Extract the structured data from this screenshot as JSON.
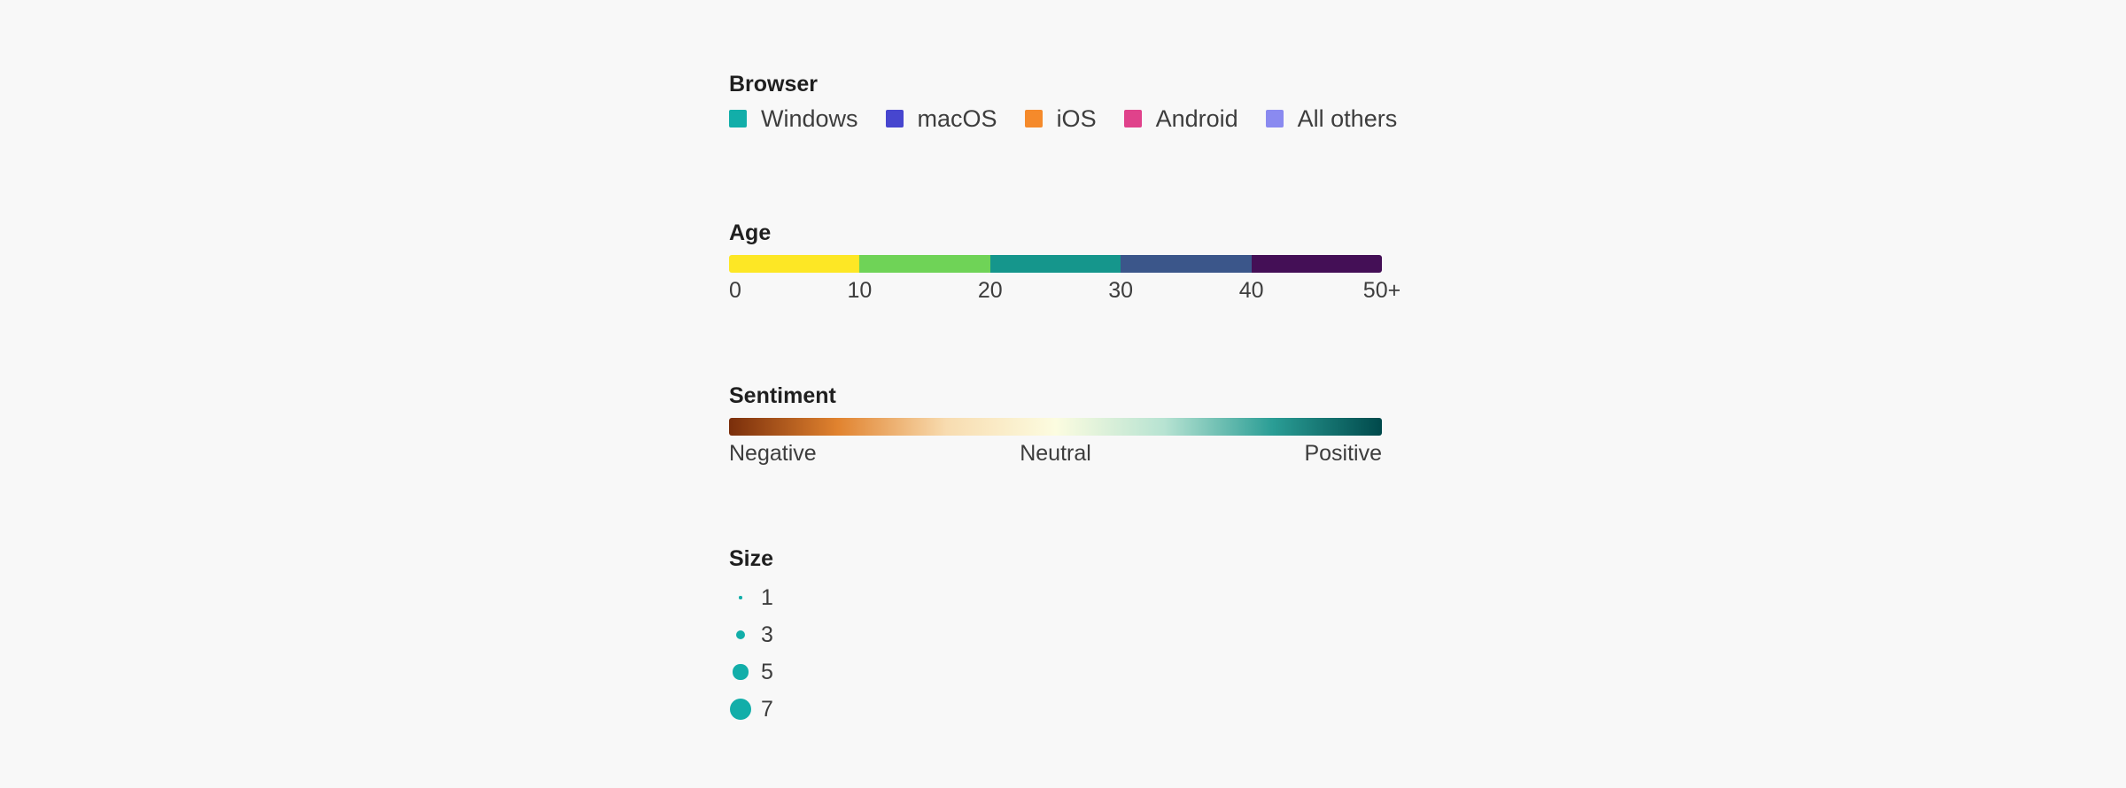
{
  "chart_data": [
    {
      "type": "legend-categorical",
      "title": "Browser",
      "items": [
        {
          "label": "Windows",
          "color": "#12aea9"
        },
        {
          "label": "macOS",
          "color": "#4746cf"
        },
        {
          "label": "iOS",
          "color": "#f58a2b"
        },
        {
          "label": "Android",
          "color": "#e0428b"
        },
        {
          "label": "All others",
          "color": "#8a8af0"
        }
      ]
    },
    {
      "type": "legend-segmented",
      "title": "Age",
      "ticks": [
        "0",
        "10",
        "20",
        "30",
        "40",
        "50+"
      ],
      "segments": [
        {
          "from": 0,
          "to": 10,
          "color": "#fde725"
        },
        {
          "from": 10,
          "to": 20,
          "color": "#6fd357"
        },
        {
          "from": 20,
          "to": 30,
          "color": "#15968c"
        },
        {
          "from": 30,
          "to": 40,
          "color": "#3b568a"
        },
        {
          "from": 40,
          "to": 50,
          "color": "#440f56"
        }
      ],
      "range": [
        0,
        50
      ]
    },
    {
      "type": "legend-gradient",
      "title": "Sentiment",
      "labels": {
        "start": "Negative",
        "middle": "Neutral",
        "end": "Positive"
      },
      "stops": [
        "#7a2e0b",
        "#e1832f",
        "#f8dcb0",
        "#fcfce0",
        "#b7e3d2",
        "#2a9d95",
        "#00494b"
      ]
    },
    {
      "type": "legend-size",
      "title": "Size",
      "color": "#12aea9",
      "items": [
        {
          "label": "1",
          "value": 1
        },
        {
          "label": "3",
          "value": 3
        },
        {
          "label": "5",
          "value": 5
        },
        {
          "label": "7",
          "value": 7
        }
      ]
    }
  ]
}
